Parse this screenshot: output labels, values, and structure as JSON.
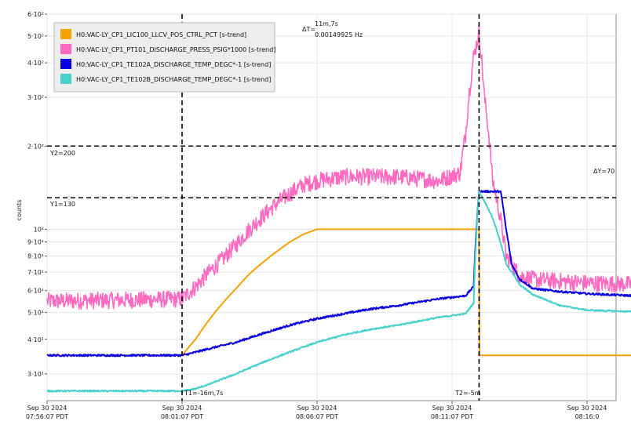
{
  "chart_data": {
    "type": "line",
    "ylabel": "counts",
    "yscale": "log",
    "ylim": [
      24,
      600
    ],
    "grid": true,
    "legend_position": "top-left",
    "x_unit": "minutes",
    "xlim": [
      0,
      22.5
    ],
    "x_ticks": [
      {
        "pos": 0,
        "date": "Sep 30 2024",
        "time": "07:56:07 PDT"
      },
      {
        "pos": 5,
        "date": "Sep 30 2024",
        "time": "08:01:07 PDT"
      },
      {
        "pos": 10,
        "date": "Sep 30 2024",
        "time": "08:06:07 PDT"
      },
      {
        "pos": 15,
        "date": "Sep 30 2024",
        "time": "08:11:07 PDT"
      },
      {
        "pos": 20,
        "date": "Sep 30 2024",
        "time": "08:16:0"
      }
    ],
    "y_ticks": [
      {
        "value": 30,
        "label": "3·10¹"
      },
      {
        "value": 40,
        "label": "4·10¹"
      },
      {
        "value": 50,
        "label": "5·10¹"
      },
      {
        "value": 60,
        "label": "6·10¹"
      },
      {
        "value": 70,
        "label": "7·10¹"
      },
      {
        "value": 80,
        "label": "8·10¹"
      },
      {
        "value": 90,
        "label": "9·10¹"
      },
      {
        "value": 100,
        "label": "10²"
      },
      {
        "value": 200,
        "label": "2·10²"
      },
      {
        "value": 300,
        "label": "3·10²"
      },
      {
        "value": 400,
        "label": "4·10²"
      },
      {
        "value": 500,
        "label": "5·10²"
      },
      {
        "value": 600,
        "label": "6·10²"
      }
    ],
    "cursors": {
      "t1": {
        "pos": 5,
        "label": "T1=-16m,7s"
      },
      "t2": {
        "pos": 16,
        "label": "T2=-5m"
      },
      "y1": {
        "value": 130,
        "label": "Y1=130"
      },
      "y2": {
        "value": 200,
        "label": "Y2=200"
      },
      "delta_t": {
        "label": "ΔT=",
        "value": "11m,7s",
        "freq": "0.00149925 Hz"
      },
      "delta_y": {
        "label": "ΔY=70"
      }
    },
    "series": [
      {
        "name": "H0:VAC-LY_CP1_LIC100_LLCV_POS_CTRL_PCT [s-trend]",
        "color": "#F5A300",
        "noise": 0,
        "x": [
          0,
          5,
          5.5,
          6,
          6.5,
          7,
          7.5,
          8,
          8.5,
          9,
          9.5,
          10,
          15.8,
          16,
          16.01,
          22.5
        ],
        "y": [
          35,
          35,
          40,
          47,
          54,
          61,
          69,
          76,
          83,
          90,
          96,
          100,
          100,
          100,
          35,
          35
        ]
      },
      {
        "name": "H0:VAC-LY_CP1_PT101_DISCHARGE_PRESS_PSIG*1000 [s-trend]",
        "color": "#FF69C0",
        "noise": 0.07,
        "x": [
          0,
          5,
          5.5,
          6,
          6.5,
          7,
          7.5,
          8,
          8.5,
          9,
          9.5,
          10,
          11,
          13,
          14.5,
          15.3,
          15.5,
          15.8,
          16,
          16.2,
          16.5,
          17,
          17.5,
          18,
          20,
          22.5
        ],
        "y": [
          55,
          56,
          62,
          70,
          78,
          88,
          100,
          112,
          124,
          135,
          145,
          150,
          155,
          155,
          150,
          160,
          220,
          420,
          510,
          300,
          150,
          80,
          68,
          66,
          64,
          63
        ]
      },
      {
        "name": "H0:VAC-LY_CP1_TE102A_DISCHARGE_TEMP_DEGC*-1 [s-trend]",
        "color": "#0A00E0",
        "noise": 0.008,
        "x": [
          0,
          5,
          5.3,
          6,
          7,
          8,
          9,
          10,
          11,
          12,
          13,
          14,
          14.5,
          15.5,
          15.8,
          16,
          16.8,
          17,
          17.2,
          17.5,
          18,
          19,
          20,
          22.5
        ],
        "y": [
          35,
          35,
          35.5,
          37,
          39,
          42,
          45,
          47.5,
          49.5,
          51.5,
          53,
          55,
          56,
          57.5,
          62,
          137,
          137,
          100,
          75,
          66,
          61,
          59.5,
          58.5,
          57
        ]
      },
      {
        "name": "H0:VAC-LY_CP1_TE102B_DISCHARGE_TEMP_DEGC*-1 [s-trend]",
        "color": "#48D1CC",
        "noise": 0.006,
        "x": [
          0,
          5,
          5.5,
          6,
          7,
          8,
          9,
          10,
          11,
          12,
          13,
          14,
          14.5,
          15.5,
          15.8,
          16,
          16.5,
          17,
          17.5,
          18,
          19,
          20,
          22.5
        ],
        "y": [
          26,
          26,
          26.5,
          27.5,
          30,
          33,
          36,
          39,
          41.5,
          43.5,
          45,
          47,
          48,
          49.5,
          54,
          137,
          110,
          75,
          63,
          58,
          53,
          51,
          50
        ]
      }
    ]
  }
}
